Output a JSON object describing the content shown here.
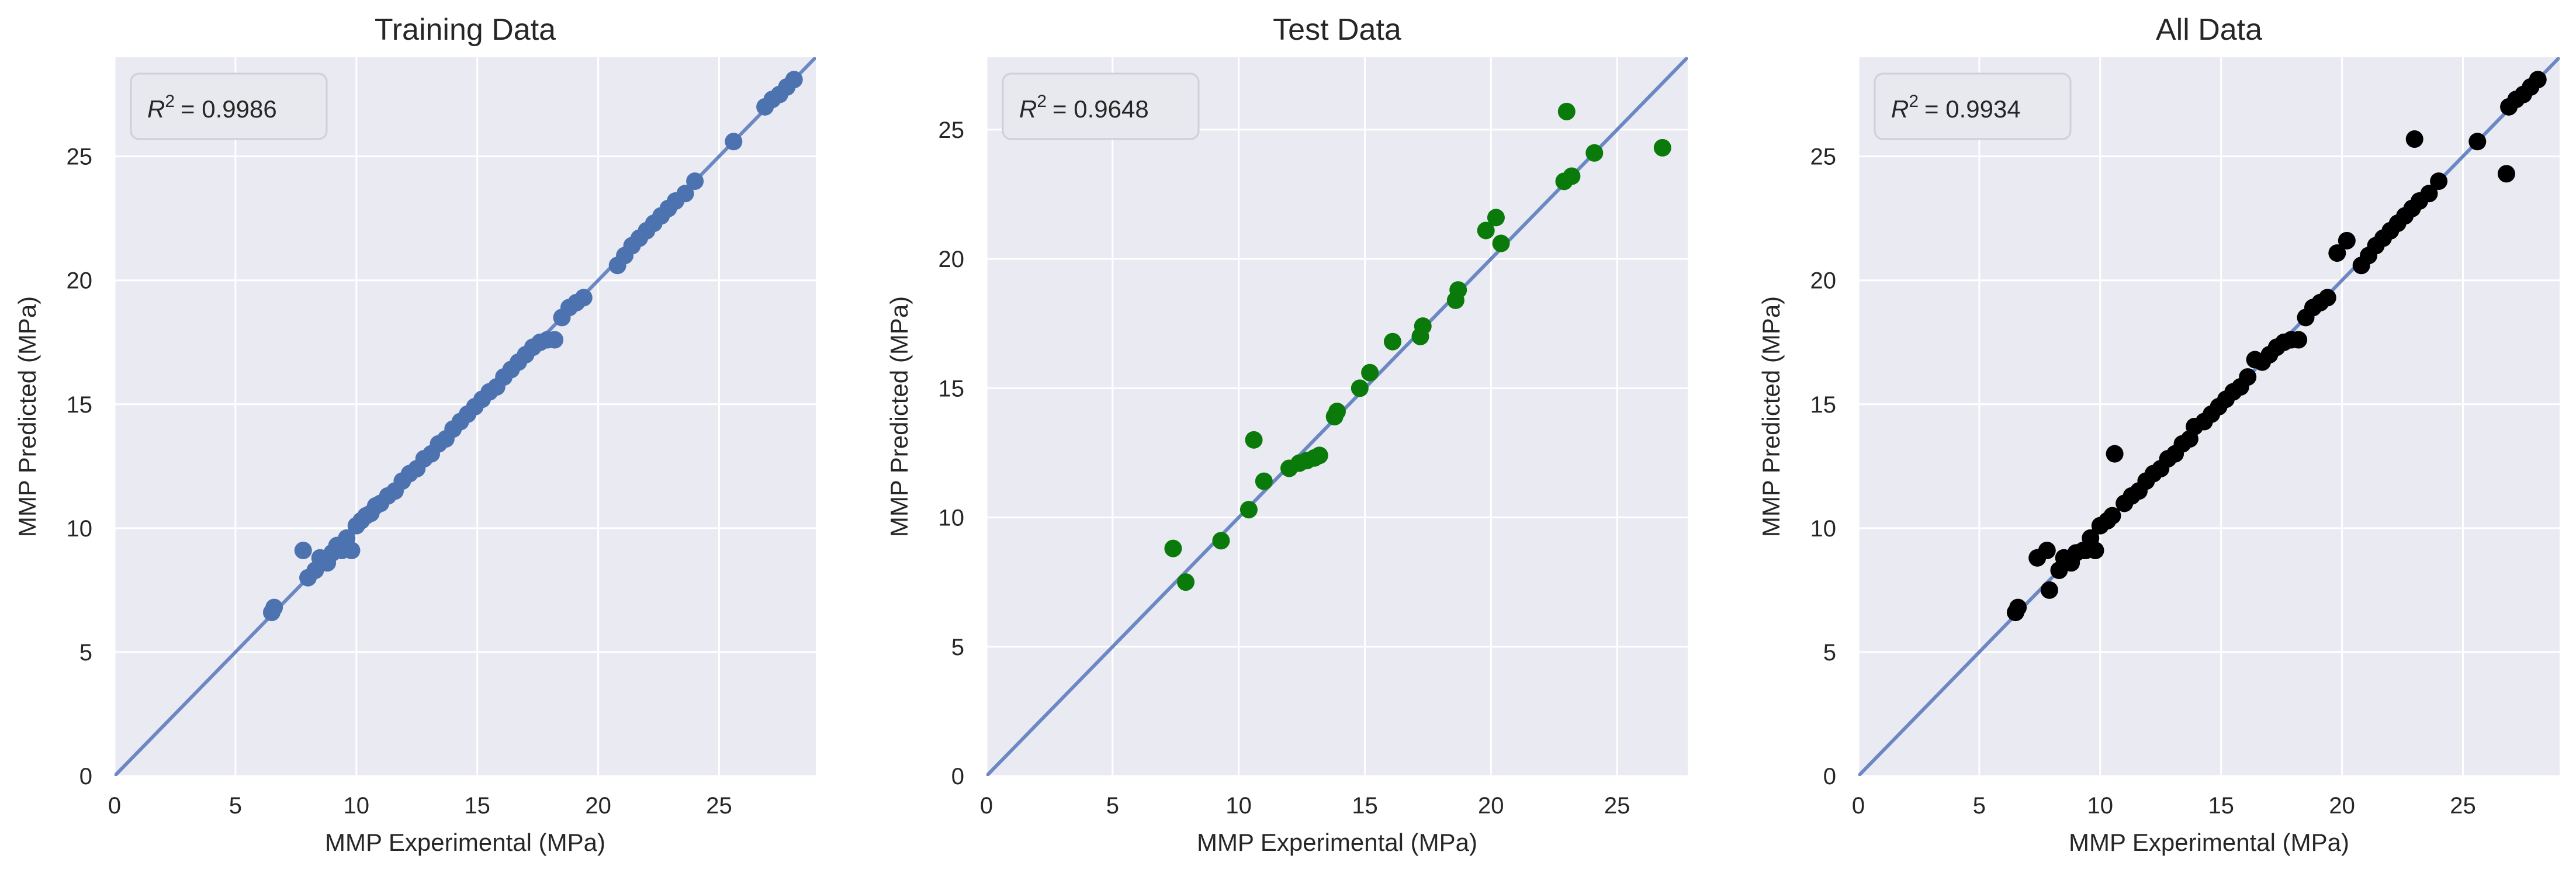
{
  "figure": {
    "ylabel": "MMP Predicted (MPa)",
    "xlabel": "MMP Experimental (MPa)",
    "bg_color": "#eaeaf2",
    "grid_color": "#ffffff",
    "identity_line_color": "#6b87c4",
    "tick_color": "#262626"
  },
  "chart_data": [
    {
      "type": "scatter",
      "title": "Training Data",
      "annotation": "R² = 0.9986",
      "r2_prefix": "R",
      "r2_exp": "2",
      "r2_value": "= 0.9986",
      "xlabel": "MMP Experimental (MPa)",
      "ylabel": "MMP Predicted (MPa)",
      "xlim": [
        0,
        29
      ],
      "ylim": [
        0,
        29
      ],
      "xticks": [
        0,
        5,
        10,
        15,
        20,
        25
      ],
      "yticks": [
        0,
        5,
        10,
        15,
        20,
        25
      ],
      "grid": true,
      "marker_color": "#4c72b0",
      "identity_line": true,
      "series": [
        {
          "x": [
            6.5,
            6.6,
            7.8,
            8.0,
            8.3,
            8.5,
            8.8,
            9.0,
            9.2,
            9.4,
            9.6,
            9.8,
            10.0,
            10.2,
            10.4,
            10.6,
            10.8,
            11.0,
            11.3,
            11.6,
            11.9,
            12.2,
            12.5,
            12.8,
            13.1,
            13.4,
            13.7,
            14.0,
            14.3,
            14.6,
            14.9,
            15.2,
            15.5,
            15.8,
            16.1,
            16.4,
            16.7,
            17.0,
            17.3,
            17.6,
            17.9,
            18.2,
            18.5,
            18.8,
            19.1,
            19.4,
            20.8,
            21.1,
            21.4,
            21.7,
            22.0,
            22.3,
            22.6,
            22.9,
            23.2,
            23.6,
            24.0,
            25.6,
            26.9,
            27.2,
            27.5,
            27.8,
            28.1
          ],
          "y": [
            6.6,
            6.8,
            9.1,
            8.0,
            8.3,
            8.8,
            8.6,
            9.0,
            9.3,
            9.1,
            9.6,
            9.1,
            10.1,
            10.3,
            10.5,
            10.6,
            10.9,
            11.0,
            11.3,
            11.5,
            11.9,
            12.2,
            12.4,
            12.8,
            13.0,
            13.4,
            13.6,
            14.0,
            14.3,
            14.6,
            14.9,
            15.2,
            15.5,
            15.7,
            16.1,
            16.4,
            16.7,
            17.0,
            17.3,
            17.5,
            17.6,
            17.6,
            18.5,
            18.9,
            19.1,
            19.3,
            20.6,
            21.0,
            21.4,
            21.7,
            22.0,
            22.3,
            22.6,
            22.9,
            23.2,
            23.5,
            24.0,
            25.6,
            27.0,
            27.3,
            27.5,
            27.8,
            28.1
          ]
        }
      ]
    },
    {
      "type": "scatter",
      "title": "Test Data",
      "annotation": "R² = 0.9648",
      "r2_prefix": "R",
      "r2_exp": "2",
      "r2_value": "= 0.9648",
      "xlabel": "MMP Experimental (MPa)",
      "ylabel": "MMP Predicted (MPa)",
      "xlim": [
        0,
        27.8
      ],
      "ylim": [
        0,
        27.8
      ],
      "xticks": [
        0,
        5,
        10,
        15,
        20,
        25
      ],
      "yticks": [
        0,
        5,
        10,
        15,
        20,
        25
      ],
      "grid": true,
      "marker_color": "#0a7a0a",
      "identity_line": true,
      "series": [
        {
          "x": [
            7.4,
            7.9,
            9.3,
            10.4,
            10.6,
            11.0,
            12.0,
            12.4,
            12.7,
            13.0,
            13.2,
            13.8,
            13.9,
            14.8,
            15.2,
            16.1,
            17.2,
            17.3,
            18.6,
            18.7,
            19.8,
            20.2,
            20.4,
            22.9,
            23.0,
            23.2,
            24.1,
            26.8
          ],
          "y": [
            8.8,
            7.5,
            9.1,
            10.3,
            13.0,
            11.4,
            11.9,
            12.1,
            12.2,
            12.3,
            12.4,
            13.9,
            14.1,
            15.0,
            15.6,
            16.8,
            17.0,
            17.4,
            18.4,
            18.8,
            21.1,
            21.6,
            20.6,
            23.0,
            25.7,
            23.2,
            24.1,
            24.3
          ]
        }
      ]
    },
    {
      "type": "scatter",
      "title": "All Data",
      "annotation": "R² = 0.9934",
      "r2_prefix": "R",
      "r2_exp": "2",
      "r2_value": "= 0.9934",
      "xlabel": "MMP Experimental (MPa)",
      "ylabel": "MMP Predicted (MPa)",
      "xlim": [
        0,
        29
      ],
      "ylim": [
        0,
        29
      ],
      "xticks": [
        0,
        5,
        10,
        15,
        20,
        25
      ],
      "yticks": [
        0,
        5,
        10,
        15,
        20,
        25
      ],
      "grid": true,
      "marker_color": "#000000",
      "identity_line": true,
      "series": [
        {
          "x": [
            6.5,
            6.6,
            7.4,
            7.8,
            7.9,
            8.3,
            8.5,
            8.8,
            9.0,
            9.3,
            9.4,
            9.6,
            9.8,
            10.0,
            10.3,
            10.5,
            10.6,
            11.0,
            11.3,
            11.6,
            11.9,
            12.2,
            12.5,
            12.8,
            13.1,
            13.4,
            13.7,
            13.9,
            14.3,
            14.6,
            14.9,
            15.2,
            15.5,
            15.8,
            16.1,
            16.4,
            16.7,
            17.0,
            17.3,
            17.6,
            17.9,
            18.2,
            18.5,
            18.8,
            19.1,
            19.4,
            19.8,
            20.2,
            20.8,
            21.1,
            21.4,
            21.7,
            22.0,
            22.3,
            22.6,
            22.9,
            23.0,
            23.2,
            23.6,
            24.0,
            25.6,
            26.8,
            26.9,
            27.2,
            27.5,
            27.8,
            28.1
          ],
          "y": [
            6.6,
            6.8,
            8.8,
            9.1,
            7.5,
            8.3,
            8.8,
            8.6,
            9.0,
            9.1,
            9.1,
            9.6,
            9.1,
            10.1,
            10.3,
            10.5,
            13.0,
            11.0,
            11.3,
            11.5,
            11.9,
            12.2,
            12.4,
            12.8,
            13.0,
            13.4,
            13.6,
            14.1,
            14.3,
            14.6,
            14.9,
            15.2,
            15.5,
            15.7,
            16.1,
            16.8,
            16.7,
            17.0,
            17.3,
            17.5,
            17.6,
            17.6,
            18.5,
            18.9,
            19.1,
            19.3,
            21.1,
            21.6,
            20.6,
            21.0,
            21.4,
            21.7,
            22.0,
            22.3,
            22.6,
            22.9,
            25.7,
            23.2,
            23.5,
            24.0,
            25.6,
            24.3,
            27.0,
            27.3,
            27.5,
            27.8,
            28.1
          ]
        }
      ]
    }
  ]
}
